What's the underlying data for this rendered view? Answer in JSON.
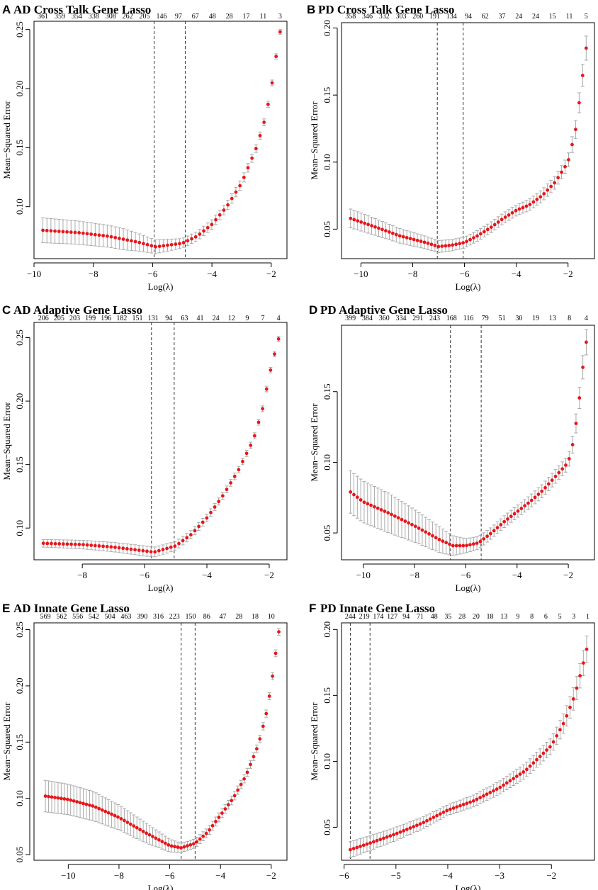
{
  "figure": {
    "width": 844,
    "height": 1256
  },
  "chart_data": [
    {
      "type": "scatter",
      "letter": "A",
      "title": "AD Cross Talk Gene Lasso",
      "xlabel": "Log(λ)",
      "ylabel": "Mean−Squared Error",
      "xlim": [
        -10.0,
        -1.47
      ],
      "ylim": [
        0.056,
        0.257
      ],
      "x_ticks": [
        -10,
        -8,
        -6,
        -4,
        -2
      ],
      "x_tick_labels": [
        "−10",
        "−8",
        "−6",
        "−4",
        "−2"
      ],
      "y_ticks": [
        0.1,
        0.15,
        0.2,
        0.25
      ],
      "y_tick_labels": [
        "0.10",
        "0.15",
        "0.20",
        "0.25"
      ],
      "top_labels": [
        "361",
        "359",
        "354",
        "338",
        "308",
        "262",
        "205",
        "146",
        "97",
        "67",
        "48",
        "28",
        "17",
        "11",
        "3"
      ],
      "top_x_start": -9.7,
      "top_x_end": -1.7,
      "lambda_min": -5.95,
      "lambda_1se": -4.9,
      "x_start": -9.7,
      "x_end": -1.7,
      "n_points": 60,
      "keypoints": [
        [
          -9.7,
          0.08
        ],
        [
          -8.5,
          0.078
        ],
        [
          -7.5,
          0.075
        ],
        [
          -6.5,
          0.07
        ],
        [
          -5.9,
          0.066
        ],
        [
          -5.0,
          0.069
        ],
        [
          -4.5,
          0.075
        ],
        [
          -4.0,
          0.085
        ],
        [
          -3.5,
          0.1
        ],
        [
          -3.0,
          0.12
        ],
        [
          -2.5,
          0.15
        ],
        [
          -2.2,
          0.175
        ],
        [
          -2.0,
          0.2
        ],
        [
          -1.85,
          0.225
        ],
        [
          -1.7,
          0.248
        ]
      ],
      "err": [
        [
          -9.7,
          0.0105
        ],
        [
          -7.0,
          0.009
        ],
        [
          -6.0,
          0.006
        ],
        [
          -5.0,
          0.004
        ],
        [
          -4.0,
          0.004
        ],
        [
          -3.0,
          0.004
        ],
        [
          -1.7,
          0.002
        ]
      ]
    },
    {
      "type": "scatter",
      "letter": "B",
      "title": "PD Cross Talk Gene Lasso",
      "xlabel": "Log(λ)",
      "ylabel": "Mean−Squared Error",
      "xlim": [
        -10.75,
        -0.98
      ],
      "ylim": [
        0.028,
        0.204
      ],
      "x_ticks": [
        -10,
        -8,
        -6,
        -4,
        -2
      ],
      "x_tick_labels": [
        "−10",
        "−8",
        "−6",
        "−4",
        "−2"
      ],
      "y_ticks": [
        0.05,
        0.1,
        0.15,
        0.2
      ],
      "y_tick_labels": [
        "0.05",
        "0.10",
        "0.15",
        "0.20"
      ],
      "top_labels": [
        "358",
        "346",
        "332",
        "303",
        "260",
        "191",
        "134",
        "94",
        "62",
        "37",
        "24",
        "24",
        "15",
        "11",
        "5"
      ],
      "top_x_start": -10.4,
      "top_x_end": -1.3,
      "lambda_min": -7.05,
      "lambda_1se": -6.05,
      "x_start": -10.4,
      "x_end": -1.3,
      "n_points": 68,
      "keypoints": [
        [
          -10.4,
          0.058
        ],
        [
          -9.5,
          0.052
        ],
        [
          -8.5,
          0.045
        ],
        [
          -7.5,
          0.04
        ],
        [
          -7.0,
          0.037
        ],
        [
          -6.5,
          0.038
        ],
        [
          -6.0,
          0.04
        ],
        [
          -5.5,
          0.045
        ],
        [
          -5.0,
          0.051
        ],
        [
          -4.5,
          0.058
        ],
        [
          -4.0,
          0.064
        ],
        [
          -3.5,
          0.068
        ],
        [
          -3.0,
          0.075
        ],
        [
          -2.5,
          0.085
        ],
        [
          -2.0,
          0.1
        ],
        [
          -1.7,
          0.125
        ],
        [
          -1.5,
          0.155
        ],
        [
          -1.3,
          0.185
        ]
      ],
      "err": [
        [
          -10.4,
          0.007
        ],
        [
          -8.0,
          0.005
        ],
        [
          -6.0,
          0.004
        ],
        [
          -4.0,
          0.004
        ],
        [
          -2.0,
          0.005
        ],
        [
          -1.3,
          0.009
        ]
      ]
    },
    {
      "type": "scatter",
      "letter": "C",
      "title": "AD Adaptive Gene Lasso",
      "xlabel": "Log(λ)",
      "ylabel": "Mean−Squared Error",
      "xlim": [
        -9.55,
        -1.43
      ],
      "ylim": [
        0.075,
        0.262
      ],
      "x_ticks": [
        -8,
        -6,
        -4,
        -2
      ],
      "x_tick_labels": [
        "−8",
        "−6",
        "−4",
        "−2"
      ],
      "y_ticks": [
        0.1,
        0.15,
        0.2,
        0.25
      ],
      "y_tick_labels": [
        "0.10",
        "0.15",
        "0.20",
        "0.25"
      ],
      "top_labels": [
        "206",
        "205",
        "203",
        "199",
        "196",
        "182",
        "151",
        "131",
        "94",
        "63",
        "41",
        "24",
        "12",
        "9",
        "7",
        "4"
      ],
      "top_x_start": -9.25,
      "top_x_end": -1.7,
      "lambda_min": -5.78,
      "lambda_1se": -5.05,
      "x_start": -9.25,
      "x_end": -1.7,
      "n_points": 60,
      "keypoints": [
        [
          -9.25,
          0.088
        ],
        [
          -8.0,
          0.087
        ],
        [
          -7.0,
          0.085
        ],
        [
          -6.0,
          0.082
        ],
        [
          -5.7,
          0.081
        ],
        [
          -5.0,
          0.086
        ],
        [
          -4.5,
          0.095
        ],
        [
          -4.0,
          0.108
        ],
        [
          -3.5,
          0.125
        ],
        [
          -3.0,
          0.145
        ],
        [
          -2.5,
          0.17
        ],
        [
          -2.2,
          0.195
        ],
        [
          -2.0,
          0.22
        ],
        [
          -1.85,
          0.235
        ],
        [
          -1.7,
          0.249
        ]
      ],
      "err": [
        [
          -9.25,
          0.003
        ],
        [
          -6.0,
          0.004
        ],
        [
          -5.0,
          0.0035
        ],
        [
          -4.0,
          0.003
        ],
        [
          -1.7,
          0.002
        ]
      ]
    },
    {
      "type": "scatter",
      "letter": "D",
      "title": "PD Adaptive Gene Lasso",
      "xlabel": "Log(λ)",
      "ylabel": "Mean−Squared Error",
      "xlim": [
        -10.85,
        -0.98
      ],
      "ylim": [
        0.031,
        0.197
      ],
      "x_ticks": [
        -10,
        -8,
        -6,
        -4,
        -2
      ],
      "x_tick_labels": [
        "−10",
        "−8",
        "−6",
        "−4",
        "−2"
      ],
      "y_ticks": [
        0.05,
        0.1,
        0.15
      ],
      "y_tick_labels": [
        "0.05",
        "0.10",
        "0.15"
      ],
      "top_labels": [
        "399",
        "384",
        "360",
        "334",
        "291",
        "243",
        "168",
        "116",
        "79",
        "51",
        "30",
        "19",
        "13",
        "8",
        "4"
      ],
      "top_x_start": -10.5,
      "top_x_end": -1.3,
      "lambda_min": -6.6,
      "lambda_1se": -5.4,
      "x_start": -10.5,
      "x_end": -1.3,
      "n_points": 70,
      "keypoints": [
        [
          -10.5,
          0.079
        ],
        [
          -10.0,
          0.072
        ],
        [
          -9.0,
          0.064
        ],
        [
          -8.0,
          0.055
        ],
        [
          -7.0,
          0.045
        ],
        [
          -6.5,
          0.041
        ],
        [
          -6.0,
          0.041
        ],
        [
          -5.5,
          0.043
        ],
        [
          -5.0,
          0.05
        ],
        [
          -4.5,
          0.058
        ],
        [
          -4.0,
          0.065
        ],
        [
          -3.5,
          0.072
        ],
        [
          -3.0,
          0.08
        ],
        [
          -2.5,
          0.09
        ],
        [
          -2.0,
          0.1
        ],
        [
          -1.8,
          0.115
        ],
        [
          -1.6,
          0.14
        ],
        [
          -1.45,
          0.165
        ],
        [
          -1.3,
          0.185
        ]
      ],
      "err": [
        [
          -10.5,
          0.015
        ],
        [
          -9.0,
          0.014
        ],
        [
          -7.0,
          0.009
        ],
        [
          -6.0,
          0.005
        ],
        [
          -5.0,
          0.004
        ],
        [
          -2.0,
          0.005
        ],
        [
          -1.3,
          0.009
        ]
      ]
    },
    {
      "type": "scatter",
      "letter": "E",
      "title": "AD Innate Gene Lasso",
      "xlabel": "Log(λ)",
      "ylabel": "Mean−Squared Error",
      "xlim": [
        -11.35,
        -1.38
      ],
      "ylim": [
        0.045,
        0.256
      ],
      "x_ticks": [
        -10,
        -8,
        -6,
        -4,
        -2
      ],
      "x_tick_labels": [
        "−10",
        "−8",
        "−6",
        "−4",
        "−2"
      ],
      "y_ticks": [
        0.05,
        0.1,
        0.15,
        0.2,
        0.25
      ],
      "y_tick_labels": [
        "0.05",
        "0.10",
        "0.15",
        "0.20",
        "0.25"
      ],
      "top_labels": [
        "569",
        "562",
        "556",
        "542",
        "504",
        "463",
        "390",
        "316",
        "223",
        "150",
        "86",
        "47",
        "28",
        "18",
        "10"
      ],
      "top_x_start": -10.9,
      "top_x_end": -2.0,
      "lambda_min": -5.55,
      "lambda_1se": -5.0,
      "x_start": -10.9,
      "x_end": -1.7,
      "n_points": 75,
      "keypoints": [
        [
          -10.9,
          0.102
        ],
        [
          -10.0,
          0.099
        ],
        [
          -9.0,
          0.093
        ],
        [
          -8.0,
          0.083
        ],
        [
          -7.0,
          0.07
        ],
        [
          -6.5,
          0.064
        ],
        [
          -6.0,
          0.058
        ],
        [
          -5.55,
          0.056
        ],
        [
          -5.0,
          0.06
        ],
        [
          -4.5,
          0.07
        ],
        [
          -4.0,
          0.085
        ],
        [
          -3.5,
          0.1
        ],
        [
          -3.0,
          0.12
        ],
        [
          -2.5,
          0.148
        ],
        [
          -2.2,
          0.175
        ],
        [
          -2.0,
          0.2
        ],
        [
          -1.85,
          0.225
        ],
        [
          -1.7,
          0.248
        ]
      ],
      "err": [
        [
          -10.9,
          0.014
        ],
        [
          -9.0,
          0.013
        ],
        [
          -7.0,
          0.009
        ],
        [
          -5.5,
          0.004
        ],
        [
          -4.0,
          0.004
        ],
        [
          -1.7,
          0.003
        ]
      ]
    },
    {
      "type": "scatter",
      "letter": "F",
      "title": "PD Innate Gene Lasso",
      "xlabel": "Log(λ)",
      "ylabel": "Mean−Squared Error",
      "xlim": [
        -6.05,
        -1.17
      ],
      "ylim": [
        0.025,
        0.205
      ],
      "x_ticks": [
        -6,
        -5,
        -4,
        -3,
        -2
      ],
      "x_tick_labels": [
        "−6",
        "−5",
        "−4",
        "−3",
        "−2"
      ],
      "y_ticks": [
        0.05,
        0.1,
        0.15,
        0.2
      ],
      "y_tick_labels": [
        "0.05",
        "0.10",
        "0.15",
        "0.20"
      ],
      "top_labels": [
        "244",
        "219",
        "174",
        "127",
        "94",
        "71",
        "48",
        "35",
        "28",
        "20",
        "18",
        "13",
        "9",
        "8",
        "6",
        "5",
        "3",
        "1"
      ],
      "top_x_start": -5.88,
      "top_x_end": -1.3,
      "lambda_min": -5.88,
      "lambda_1se": -5.5,
      "x_start": -5.88,
      "x_end": -1.32,
      "n_points": 72,
      "keypoints": [
        [
          -5.88,
          0.033
        ],
        [
          -5.5,
          0.038
        ],
        [
          -5.0,
          0.045
        ],
        [
          -4.5,
          0.053
        ],
        [
          -4.0,
          0.063
        ],
        [
          -3.5,
          0.07
        ],
        [
          -3.0,
          0.08
        ],
        [
          -2.5,
          0.093
        ],
        [
          -2.0,
          0.112
        ],
        [
          -1.75,
          0.13
        ],
        [
          -1.55,
          0.15
        ],
        [
          -1.4,
          0.172
        ],
        [
          -1.32,
          0.185
        ]
      ],
      "err": [
        [
          -5.88,
          0.006
        ],
        [
          -4.0,
          0.004
        ],
        [
          -3.0,
          0.005
        ],
        [
          -2.0,
          0.006
        ],
        [
          -1.32,
          0.01
        ]
      ]
    }
  ]
}
